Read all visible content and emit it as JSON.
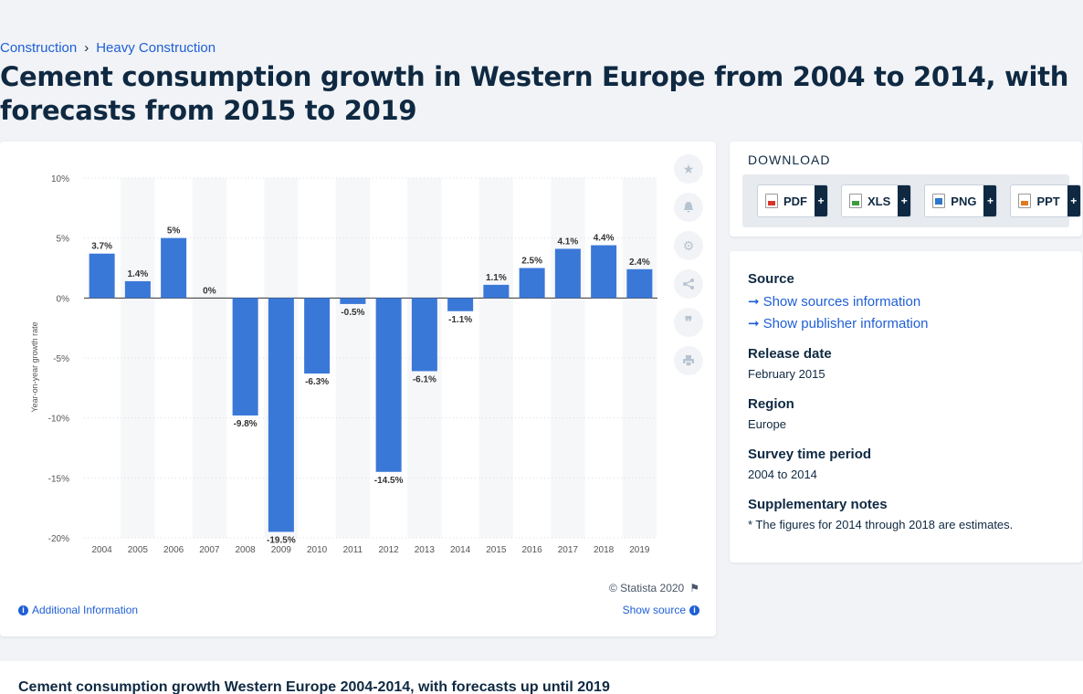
{
  "breadcrumb": [
    "Construction",
    "Heavy Construction"
  ],
  "title": "Cement consumption growth in Western Europe from 2004 to 2014, with forecasts from 2015 to 2019",
  "chart": {
    "copyright": "© Statista 2020",
    "additional_info": "Additional Information",
    "show_source": "Show source"
  },
  "chart_data": {
    "type": "bar",
    "ylabel": "Year-on-year growth rate",
    "categories": [
      "2004",
      "2005",
      "2006",
      "2007",
      "2008",
      "2009",
      "2010",
      "2011",
      "2012",
      "2013",
      "2014",
      "2015",
      "2016",
      "2017",
      "2018",
      "2019"
    ],
    "values": [
      3.7,
      1.4,
      5,
      0,
      -9.8,
      -19.5,
      -6.3,
      -0.5,
      -14.5,
      -6.1,
      -1.1,
      1.1,
      2.5,
      4.1,
      4.4,
      2.4
    ],
    "data_labels": [
      "3.7%",
      "1.4%",
      "5%",
      "0%",
      "-9.8%",
      "-19.5%",
      "-6.3%",
      "-0.5%",
      "-14.5%",
      "-6.1%",
      "-1.1%",
      "1.1%",
      "2.5%",
      "4.1%",
      "4.4%",
      "2.4%"
    ],
    "y_ticks": [
      10,
      5,
      0,
      -5,
      -10,
      -15,
      -20
    ],
    "y_tick_labels": [
      "10%",
      "5%",
      "0%",
      "-5%",
      "-10%",
      "-15%",
      "-20%"
    ],
    "ylim": [
      -20,
      10
    ],
    "bar_color": "#3a78d8",
    "grid": true
  },
  "download": {
    "title": "DOWNLOAD",
    "buttons": [
      {
        "label": "PDF",
        "icon": "pdf-file-icon",
        "color": "#d9342b"
      },
      {
        "label": "XLS",
        "icon": "xls-file-icon",
        "color": "#3e9b3e"
      },
      {
        "label": "PNG",
        "icon": "png-file-icon",
        "color": "#2c77c7"
      },
      {
        "label": "PPT",
        "icon": "ppt-file-icon",
        "color": "#e07a20"
      }
    ],
    "plus": "+"
  },
  "meta": {
    "source_heading": "Source",
    "show_sources": "Show sources information",
    "show_publisher": "Show publisher information",
    "release_heading": "Release date",
    "release_value": "February 2015",
    "region_heading": "Region",
    "region_value": "Europe",
    "survey_heading": "Survey time period",
    "survey_value": "2004 to 2014",
    "notes_heading": "Supplementary notes",
    "notes_value": "* The figures for 2014 through 2018 are estimates."
  },
  "bottom_title": "Cement consumption growth Western Europe 2004-2014, with forecasts up until 2019"
}
